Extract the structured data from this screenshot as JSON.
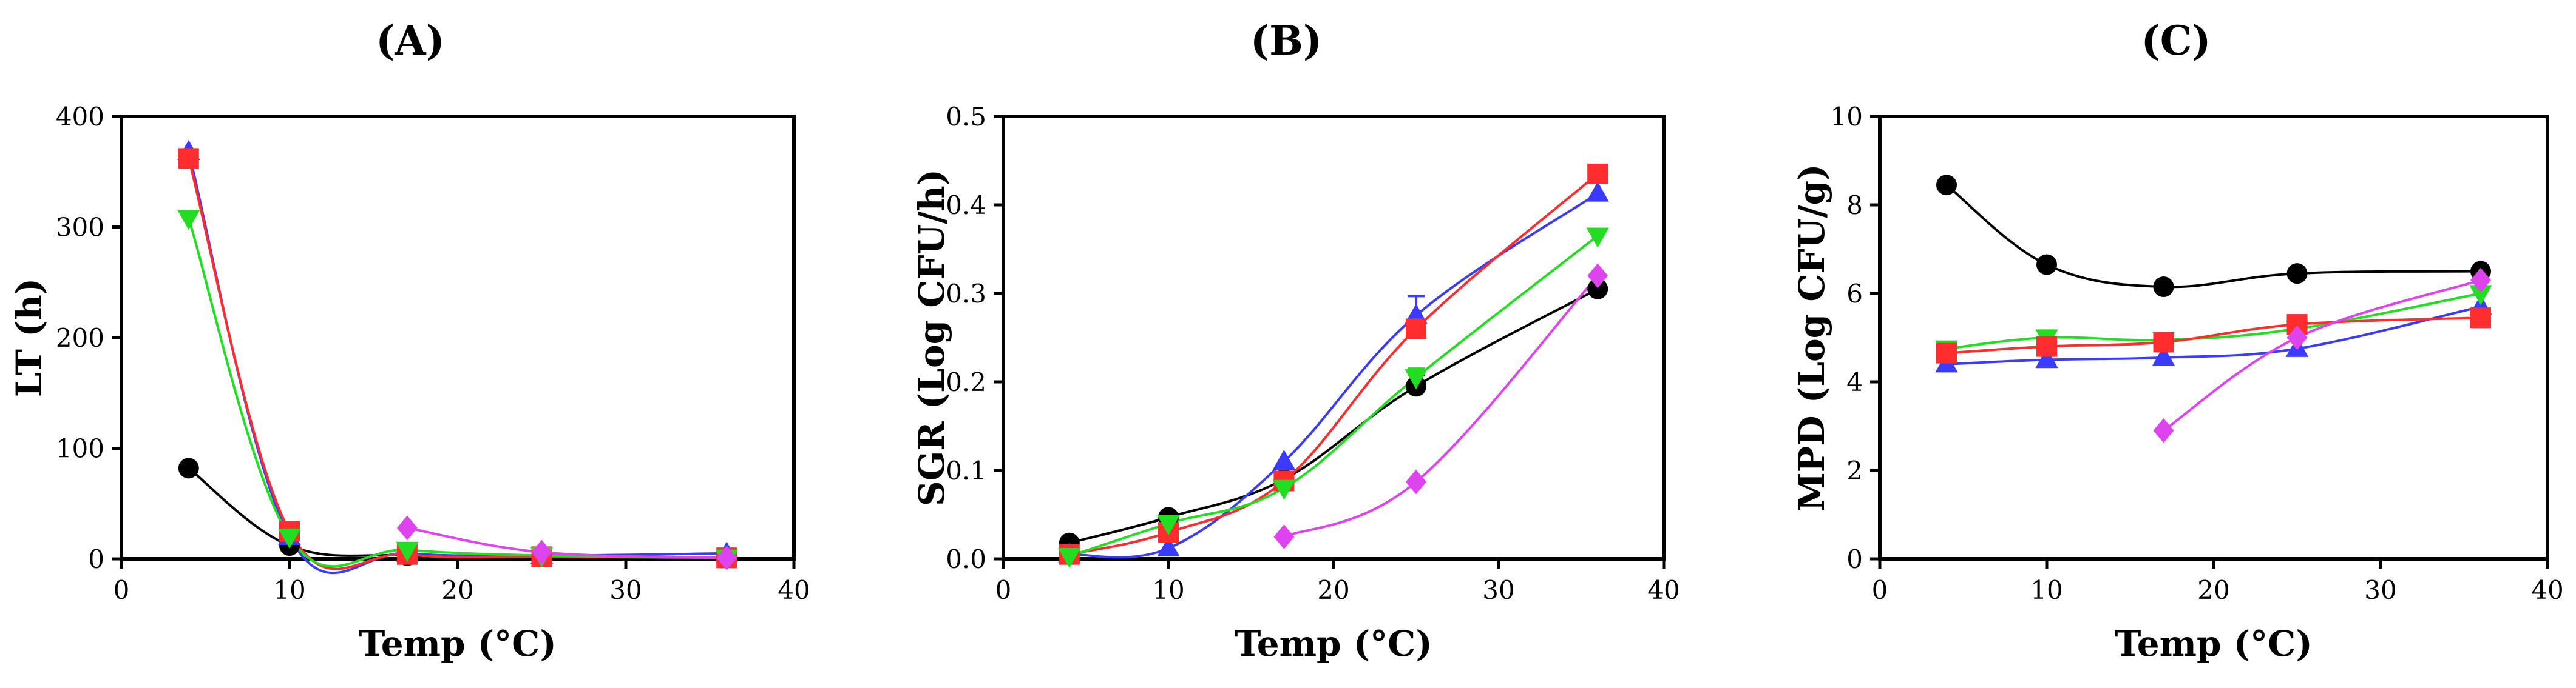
{
  "chart_data": [
    {
      "type": "scatter",
      "panel_label": "(A)",
      "title": "",
      "xlabel": "Temp (°C)",
      "ylabel": "LT (h)",
      "xlim": [
        0,
        40
      ],
      "ylim": [
        0,
        400
      ],
      "xticks": [
        0,
        10,
        20,
        30,
        40
      ],
      "yticks": [
        0,
        100,
        200,
        300,
        400
      ],
      "series": [
        {
          "name": "black",
          "color": "#000000",
          "marker": "circle",
          "x": [
            4,
            10,
            17,
            25,
            36
          ],
          "y": [
            82,
            12,
            3,
            2,
            1
          ]
        },
        {
          "name": "blue",
          "color": "#3b3bff",
          "marker": "triangle-up",
          "x": [
            4,
            10,
            17,
            25,
            36
          ],
          "y": [
            368,
            20,
            5,
            3,
            5
          ]
        },
        {
          "name": "red",
          "color": "#ff2d2d",
          "marker": "square",
          "x": [
            4,
            10,
            17,
            25,
            36
          ],
          "y": [
            362,
            25,
            4,
            2,
            1
          ]
        },
        {
          "name": "green",
          "color": "#22dd22",
          "marker": "triangle-down",
          "x": [
            4,
            10,
            17,
            25,
            36
          ],
          "y": [
            308,
            20,
            8,
            3,
            1
          ]
        },
        {
          "name": "magenta",
          "color": "#dd44ee",
          "marker": "diamond",
          "x": [
            17,
            25,
            36
          ],
          "y": [
            28,
            6,
            1
          ]
        }
      ]
    },
    {
      "type": "scatter",
      "panel_label": "(B)",
      "title": "",
      "xlabel": "Temp (°C)",
      "ylabel": "SGR (Log CFU/h)",
      "xlim": [
        0,
        40
      ],
      "ylim": [
        0,
        0.5
      ],
      "xticks": [
        0,
        10,
        20,
        30,
        40
      ],
      "yticks": [
        0.0,
        0.1,
        0.2,
        0.3,
        0.4,
        0.5
      ],
      "series": [
        {
          "name": "black",
          "color": "#000000",
          "marker": "circle",
          "x": [
            4,
            10,
            17,
            25,
            36
          ],
          "y": [
            0.018,
            0.047,
            0.09,
            0.195,
            0.305
          ],
          "err": [
            0,
            0,
            0,
            0.013,
            0
          ]
        },
        {
          "name": "blue",
          "color": "#3b3bff",
          "marker": "triangle-up",
          "x": [
            4,
            10,
            17,
            25,
            36
          ],
          "y": [
            0.005,
            0.012,
            0.11,
            0.275,
            0.413
          ],
          "err": [
            0,
            0,
            0,
            0.022,
            0
          ]
        },
        {
          "name": "red",
          "color": "#ff2d2d",
          "marker": "square",
          "x": [
            4,
            10,
            17,
            25,
            36
          ],
          "y": [
            0.005,
            0.03,
            0.088,
            0.26,
            0.435
          ],
          "err": [
            0,
            0,
            0,
            0,
            0
          ]
        },
        {
          "name": "green",
          "color": "#22dd22",
          "marker": "triangle-down",
          "x": [
            4,
            10,
            17,
            25,
            36
          ],
          "y": [
            0.003,
            0.04,
            0.08,
            0.205,
            0.365
          ],
          "err": [
            0,
            0,
            0,
            0.01,
            0
          ]
        },
        {
          "name": "magenta",
          "color": "#dd44ee",
          "marker": "diamond",
          "x": [
            17,
            25,
            36
          ],
          "y": [
            0.025,
            0.087,
            0.32
          ],
          "err": [
            0,
            0,
            0
          ]
        }
      ]
    },
    {
      "type": "scatter",
      "panel_label": "(C)",
      "title": "",
      "xlabel": "Temp (°C)",
      "ylabel": "MPD (Log CFU/g)",
      "xlim": [
        0,
        40
      ],
      "ylim": [
        0,
        10
      ],
      "xticks": [
        0,
        10,
        20,
        30,
        40
      ],
      "yticks": [
        0,
        2,
        4,
        6,
        8,
        10
      ],
      "series": [
        {
          "name": "black",
          "color": "#000000",
          "marker": "circle",
          "x": [
            4,
            10,
            17,
            25,
            36
          ],
          "y": [
            8.45,
            6.65,
            6.15,
            6.45,
            6.5
          ]
        },
        {
          "name": "blue",
          "color": "#3b3bff",
          "marker": "triangle-up",
          "x": [
            4,
            10,
            17,
            25,
            36
          ],
          "y": [
            4.4,
            4.5,
            4.55,
            4.75,
            5.7
          ]
        },
        {
          "name": "green",
          "color": "#22dd22",
          "marker": "triangle-down",
          "x": [
            4,
            10,
            17,
            25,
            36
          ],
          "y": [
            4.75,
            5.0,
            4.95,
            5.2,
            6.0
          ]
        },
        {
          "name": "red",
          "color": "#ff2d2d",
          "marker": "square",
          "x": [
            4,
            10,
            17,
            25,
            36
          ],
          "y": [
            4.65,
            4.8,
            4.9,
            5.3,
            5.45
          ]
        },
        {
          "name": "magenta",
          "color": "#dd44ee",
          "marker": "diamond",
          "x": [
            17,
            25,
            36
          ],
          "y": [
            2.9,
            5.0,
            6.3
          ]
        }
      ]
    }
  ]
}
